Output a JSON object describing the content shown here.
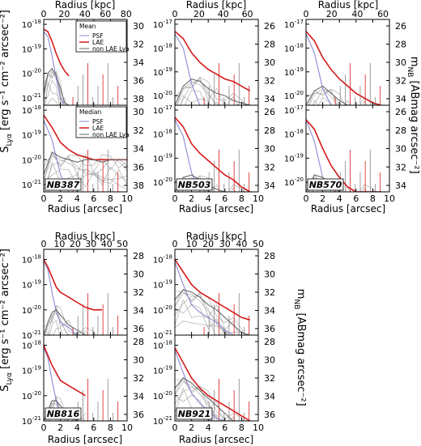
{
  "figure": {
    "left_ylabel_main": "S",
    "left_ylabel_sub": "Lyα",
    "left_ylabel_units": "[erg s⁻¹ cm⁻² arcsec⁻²]",
    "right_ylabel_main": "m",
    "right_ylabel_sub": "NB",
    "right_ylabel_units": "[ABmag arcsec⁻²]",
    "xlabel_bottom": "Radius [arcsec]",
    "xlabel_top": "Radius [kpc]"
  },
  "legend_mean": {
    "title": "Mean",
    "entries": [
      "PSF",
      "LAE",
      "non LAE Lya"
    ]
  },
  "legend_median": {
    "title": "Median",
    "entries": [
      "PSF",
      "LAE",
      "non LAE Lya"
    ]
  },
  "colors": {
    "psf": "#8a8ad6",
    "lae": "#d61a1a",
    "nonlae": "#6a6a6a"
  },
  "chart_data": [
    {
      "type": "line",
      "filter": "NB387",
      "stat": "Mean",
      "xlim": [
        0,
        10
      ],
      "ylim_log10": [
        -21.3,
        -17.8
      ],
      "xticks": [
        0,
        2,
        4,
        6,
        8,
        10
      ],
      "kpc_ticks": [
        0,
        20,
        40,
        60,
        80
      ],
      "kpc_per_arcsec": 8.1,
      "yticks": [
        "-18",
        "-19",
        "-20",
        "-21"
      ],
      "right_ticks": [
        "30",
        "32",
        "34",
        "36",
        "38"
      ],
      "x": [
        0.0,
        0.5,
        1.0,
        1.5,
        2.0,
        2.5,
        3.0
      ],
      "series": [
        {
          "name": "PSF",
          "values": [
            -18.3,
            -18.5,
            -19.3,
            -20.2,
            -21.0,
            -21.3,
            -21.3
          ]
        },
        {
          "name": "LAE",
          "values": [
            -18.2,
            -18.3,
            -18.7,
            -19.2,
            -19.6,
            -19.9,
            -20.1
          ]
        },
        {
          "name": "non LAE Lya",
          "values": [
            -20.8,
            -20.0,
            -19.8,
            -20.1,
            -20.6,
            -21.2,
            -21.3
          ]
        }
      ]
    },
    {
      "type": "line",
      "filter": "NB503",
      "stat": "Mean",
      "xlim": [
        0,
        10
      ],
      "ylim_log10": [
        -20.4,
        -16.8
      ],
      "xticks": [
        0,
        2,
        4,
        6,
        8,
        10
      ],
      "kpc_ticks": [
        0,
        20,
        40,
        60
      ],
      "kpc_per_arcsec": 6.9,
      "yticks": [
        "-17",
        "-18",
        "-19",
        "-20"
      ],
      "right_ticks": [
        "26",
        "28",
        "30",
        "32",
        "34"
      ],
      "x": [
        0,
        1,
        2,
        3,
        4,
        5,
        6,
        7,
        8,
        9
      ],
      "series": [
        {
          "name": "PSF",
          "values": [
            -17.4,
            -18.0,
            -19.5,
            -20.4,
            -20.4,
            -20.4,
            -20.4,
            -20.4,
            -20.4,
            -20.4
          ]
        },
        {
          "name": "LAE",
          "values": [
            -17.3,
            -17.6,
            -18.2,
            -18.6,
            -18.9,
            -19.1,
            -19.3,
            -19.4,
            -19.6,
            -19.8
          ]
        },
        {
          "name": "non LAE Lya",
          "values": [
            -20.4,
            -19.6,
            -19.3,
            -19.4,
            -19.7,
            -19.9,
            -20.0,
            -20.2,
            -20.3,
            -20.4
          ]
        }
      ]
    },
    {
      "type": "line",
      "filter": "NB570",
      "stat": "Mean",
      "xlim": [
        0,
        10
      ],
      "ylim_log10": [
        -20.4,
        -16.8
      ],
      "xticks": [
        0,
        2,
        4,
        6,
        8,
        10
      ],
      "kpc_ticks": [
        0,
        20,
        40,
        60
      ],
      "kpc_per_arcsec": 6.5,
      "yticks": [
        "-17",
        "-18",
        "-19",
        "-20"
      ],
      "right_ticks": [
        "26",
        "28",
        "30",
        "32",
        "34"
      ],
      "x": [
        0,
        1,
        2,
        3,
        4,
        5,
        6,
        7,
        8,
        9
      ],
      "series": [
        {
          "name": "PSF",
          "values": [
            -17.4,
            -18.2,
            -19.7,
            -20.4,
            -20.4,
            -20.4,
            -20.4,
            -20.4,
            -20.4,
            -20.4
          ]
        },
        {
          "name": "LAE",
          "values": [
            -17.3,
            -17.7,
            -18.4,
            -18.9,
            -19.3,
            -19.6,
            -19.9,
            -20.1,
            -20.3,
            -20.4
          ]
        },
        {
          "name": "non LAE Lya",
          "values": [
            -20.4,
            -19.8,
            -19.6,
            -19.9,
            -20.2,
            -20.4,
            -20.4,
            -20.4,
            -20.4,
            -20.4
          ]
        }
      ]
    },
    {
      "type": "line",
      "filter": "NB387",
      "stat": "Median",
      "xlim": [
        0,
        10
      ],
      "ylim_log10": [
        -21.3,
        -17.8
      ],
      "xticks": [
        0,
        2,
        4,
        6,
        8,
        10
      ],
      "kpc_ticks": [
        0,
        20,
        40,
        60,
        80
      ],
      "kpc_per_arcsec": 8.1,
      "yticks": [
        "-18",
        "-19",
        "-20",
        "-21"
      ],
      "right_ticks": [
        "30",
        "32",
        "34",
        "36",
        "38"
      ],
      "x": [
        0,
        1,
        2,
        3,
        4,
        5,
        6,
        7,
        8,
        9,
        10
      ],
      "series": [
        {
          "name": "PSF",
          "values": [
            -18.4,
            -19.2,
            -20.6,
            -21.3,
            -21.3,
            -21.3,
            -21.3,
            -21.3,
            -21.3,
            -21.3,
            -21.3
          ]
        },
        {
          "name": "LAE",
          "values": [
            -18.2,
            -18.7,
            -19.3,
            -19.6,
            -19.8,
            -19.9,
            -20.0,
            -20.0,
            -20.0,
            -20.0,
            -20.0
          ]
        },
        {
          "name": "non LAE Lya",
          "values": [
            -20.6,
            -19.7,
            -19.9,
            -20.0,
            -20.1,
            -20.0,
            -20.0,
            -20.1,
            -20.0,
            -20.0,
            -20.0
          ]
        }
      ]
    },
    {
      "type": "line",
      "filter": "NB503",
      "stat": "Median",
      "xlim": [
        0,
        10
      ],
      "ylim_log10": [
        -20.4,
        -16.8
      ],
      "xticks": [
        0,
        2,
        4,
        6,
        8,
        10
      ],
      "kpc_ticks": [
        0,
        20,
        40,
        60
      ],
      "kpc_per_arcsec": 6.9,
      "yticks": [
        "-17",
        "-18",
        "-19",
        "-20"
      ],
      "right_ticks": [
        "26",
        "28",
        "30",
        "32",
        "34"
      ],
      "x": [
        0,
        1,
        2,
        3,
        4,
        5,
        6,
        7,
        8,
        9
      ],
      "series": [
        {
          "name": "PSF",
          "values": [
            -17.4,
            -18.1,
            -19.6,
            -20.4,
            -20.4,
            -20.4,
            -20.4,
            -20.4,
            -20.4,
            -20.4
          ]
        },
        {
          "name": "LAE",
          "values": [
            -17.3,
            -17.7,
            -18.4,
            -18.8,
            -19.1,
            -19.4,
            -19.7,
            -19.9,
            -20.2,
            -20.4
          ]
        },
        {
          "name": "non LAE Lya",
          "values": [
            -20.4,
            -19.8,
            -19.7,
            -19.9,
            -20.1,
            -20.3,
            -20.4,
            -20.4,
            -20.4,
            -20.4
          ]
        }
      ]
    },
    {
      "type": "line",
      "filter": "NB570",
      "stat": "Median",
      "xlim": [
        0,
        10
      ],
      "ylim_log10": [
        -20.4,
        -16.8
      ],
      "xticks": [
        0,
        2,
        4,
        6,
        8,
        10
      ],
      "kpc_ticks": [
        0,
        20,
        40,
        60
      ],
      "kpc_per_arcsec": 6.5,
      "yticks": [
        "-17",
        "-18",
        "-19",
        "-20"
      ],
      "right_ticks": [
        "26",
        "28",
        "30",
        "32",
        "34"
      ],
      "x": [
        0,
        1,
        2,
        3,
        4,
        5,
        6,
        7,
        8,
        9
      ],
      "series": [
        {
          "name": "PSF",
          "values": [
            -17.4,
            -18.3,
            -19.8,
            -20.4,
            -20.4,
            -20.4,
            -20.4,
            -20.4,
            -20.4,
            -20.4
          ]
        },
        {
          "name": "LAE",
          "values": [
            -17.4,
            -17.8,
            -18.6,
            -19.3,
            -19.8,
            -20.2,
            -20.4,
            -20.4,
            -20.4,
            -20.4
          ]
        },
        {
          "name": "non LAE Lya",
          "values": [
            -20.4,
            -19.7,
            -19.8,
            -20.1,
            -20.4,
            -20.4,
            -20.4,
            -20.4,
            -20.4,
            -20.4
          ]
        }
      ]
    },
    {
      "type": "line",
      "filter": "NB816",
      "stat": "Mean",
      "xlim": [
        0,
        10
      ],
      "ylim_log10": [
        -21.0,
        -17.6
      ],
      "xticks": [
        0,
        2,
        4,
        6,
        8,
        10
      ],
      "kpc_ticks": [
        0,
        10,
        20,
        30,
        40,
        50
      ],
      "kpc_per_arcsec": 5.3,
      "yticks": [
        "-18",
        "-19",
        "-20",
        "-21"
      ],
      "right_ticks": [
        "28",
        "30",
        "32",
        "34",
        "36"
      ],
      "x": [
        0,
        0.5,
        1,
        1.5,
        2,
        3,
        4,
        5,
        6,
        7
      ],
      "series": [
        {
          "name": "PSF",
          "values": [
            -18.1,
            -18.4,
            -19.3,
            -20.1,
            -20.5,
            -20.7,
            -21.0,
            -21.0,
            -21.0,
            -21.0
          ]
        },
        {
          "name": "LAE",
          "values": [
            -18.0,
            -18.3,
            -18.7,
            -19.1,
            -19.3,
            -19.5,
            -19.7,
            -19.9,
            -20.0,
            -20.0
          ]
        },
        {
          "name": "non LAE Lya",
          "values": [
            -21.0,
            -20.5,
            -20.1,
            -20.0,
            -20.2,
            -20.6,
            -20.8,
            -21.0,
            -21.0,
            -21.0
          ]
        }
      ]
    },
    {
      "type": "line",
      "filter": "NB921",
      "stat": "Mean",
      "xlim": [
        0,
        10
      ],
      "ylim_log10": [
        -21.0,
        -17.6
      ],
      "xticks": [
        0,
        2,
        4,
        6,
        8,
        10
      ],
      "kpc_ticks": [
        0,
        10,
        20,
        30,
        40,
        50
      ],
      "kpc_per_arcsec": 5.0,
      "yticks": [
        "-18",
        "-19",
        "-20",
        "-21"
      ],
      "right_ticks": [
        "28",
        "30",
        "32",
        "34",
        "36"
      ],
      "x": [
        0,
        1,
        2,
        3,
        4,
        5,
        6,
        7,
        8,
        9
      ],
      "series": [
        {
          "name": "PSF",
          "values": [
            -18.1,
            -19.0,
            -19.8,
            -20.1,
            -20.3,
            -20.5,
            -20.8,
            -21.0,
            -21.0,
            -21.0
          ]
        },
        {
          "name": "LAE",
          "values": [
            -18.0,
            -18.5,
            -19.0,
            -19.3,
            -19.5,
            -19.7,
            -19.9,
            -20.1,
            -20.3,
            -20.4
          ]
        },
        {
          "name": "non LAE Lya",
          "values": [
            -19.6,
            -19.2,
            -19.3,
            -19.5,
            -19.8,
            -20.0,
            -20.3,
            -20.6,
            -20.9,
            -21.0
          ]
        }
      ]
    },
    {
      "type": "line",
      "filter": "NB816",
      "stat": "Median",
      "xlim": [
        0,
        10
      ],
      "ylim_log10": [
        -21.0,
        -17.6
      ],
      "xticks": [
        0,
        2,
        4,
        6,
        8,
        10
      ],
      "kpc_ticks": [
        0,
        10,
        20,
        30,
        40,
        50
      ],
      "kpc_per_arcsec": 5.3,
      "yticks": [
        "-18",
        "-19",
        "-20",
        "-21"
      ],
      "right_ticks": [
        "28",
        "30",
        "32",
        "34",
        "36"
      ],
      "x": [
        0,
        0.5,
        1,
        1.5,
        2,
        3,
        4,
        5
      ],
      "series": [
        {
          "name": "PSF",
          "values": [
            -18.1,
            -18.5,
            -19.4,
            -20.2,
            -20.8,
            -21.0,
            -21.0,
            -21.0
          ]
        },
        {
          "name": "LAE",
          "values": [
            -18.0,
            -18.4,
            -18.8,
            -19.1,
            -19.4,
            -19.6,
            -19.8,
            -20.0
          ]
        },
        {
          "name": "non LAE Lya",
          "values": [
            -21.0,
            -20.6,
            -20.2,
            -20.2,
            -20.4,
            -20.8,
            -21.0,
            -21.0
          ]
        }
      ]
    },
    {
      "type": "line",
      "filter": "NB921",
      "stat": "Median",
      "xlim": [
        0,
        10
      ],
      "ylim_log10": [
        -21.0,
        -17.6
      ],
      "xticks": [
        0,
        2,
        4,
        6,
        8,
        10
      ],
      "kpc_ticks": [
        0,
        10,
        20,
        30,
        40,
        50
      ],
      "kpc_per_arcsec": 5.0,
      "yticks": [
        "-18",
        "-19",
        "-20",
        "-21"
      ],
      "right_ticks": [
        "28",
        "30",
        "32",
        "34",
        "36"
      ],
      "x": [
        0,
        1,
        2,
        3,
        4,
        5,
        6,
        7,
        8,
        9
      ],
      "series": [
        {
          "name": "PSF",
          "values": [
            -18.2,
            -19.1,
            -19.9,
            -20.3,
            -20.6,
            -20.9,
            -21.0,
            -21.0,
            -21.0,
            -21.0
          ]
        },
        {
          "name": "LAE",
          "values": [
            -18.1,
            -18.7,
            -19.3,
            -19.7,
            -20.0,
            -20.2,
            -20.4,
            -20.6,
            -20.8,
            -21.0
          ]
        },
        {
          "name": "non LAE Lya",
          "values": [
            -19.7,
            -19.3,
            -19.5,
            -19.8,
            -20.1,
            -20.4,
            -20.7,
            -21.0,
            -21.0,
            -21.0
          ]
        }
      ]
    }
  ]
}
